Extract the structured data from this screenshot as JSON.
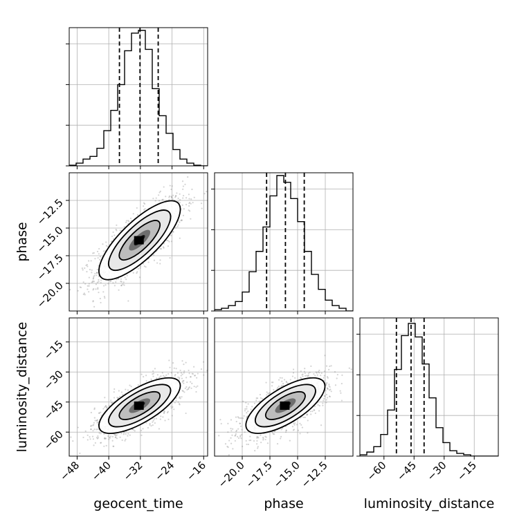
{
  "chart_data": {
    "type": "corner",
    "parameters": [
      "geocent_time",
      "phase",
      "luminosity_distance"
    ],
    "axis_labels": {
      "geocent_time": "geocent_time",
      "phase": "phase",
      "luminosity_distance": "luminosity_distance"
    },
    "ranges": {
      "geocent_time": [
        -50,
        -15
      ],
      "phase": [
        -22.5,
        -10.0
      ],
      "luminosity_distance": [
        -72,
        -3
      ]
    },
    "ticks": {
      "geocent_time": {
        "values": [
          -48,
          -40,
          -32,
          -24,
          -16
        ],
        "labels": [
          "−48",
          "−40",
          "−32",
          "−24",
          "−16"
        ]
      },
      "phase": {
        "values": [
          -20.0,
          -17.5,
          -15.0,
          -12.5
        ],
        "labels": [
          "−20.0",
          "−17.5",
          "−15.0",
          "−12.5"
        ]
      },
      "luminosity_distance": {
        "values": [
          -60,
          -45,
          -30,
          -15
        ],
        "labels": [
          "−60",
          "−45",
          "−30",
          "−15"
        ]
      }
    },
    "quantiles": {
      "geocent_time": [
        -37.3,
        -32.1,
        -27.5
      ],
      "phase": [
        -17.8,
        -16.1,
        -14.4
      ],
      "luminosity_distance": [
        -53.8,
        -46.5,
        -40.0
      ]
    },
    "histograms": {
      "geocent_time": [
        0.005,
        0.02,
        0.05,
        0.07,
        0.13,
        0.26,
        0.41,
        0.6,
        0.85,
        0.98,
        1.0,
        0.86,
        0.57,
        0.37,
        0.24,
        0.12,
        0.05,
        0.02,
        0.005,
        0.0
      ],
      "phase": [
        0.01,
        0.02,
        0.04,
        0.07,
        0.14,
        0.29,
        0.44,
        0.62,
        0.85,
        1.0,
        0.95,
        0.83,
        0.66,
        0.44,
        0.27,
        0.16,
        0.08,
        0.04,
        0.02,
        0.0
      ],
      "luminosity_distance": [
        0.01,
        0.03,
        0.07,
        0.16,
        0.34,
        0.64,
        0.89,
        0.98,
        0.88,
        0.68,
        0.43,
        0.21,
        0.1,
        0.04,
        0.02,
        0.01,
        0.0,
        0.0,
        0.0,
        0.0
      ]
    },
    "correlations": {
      "geocent_time|phase": 0.78,
      "geocent_time|luminosity_distance": 0.72,
      "phase|luminosity_distance": 0.7
    },
    "means": {
      "geocent_time": -32.2,
      "phase": -16.1,
      "luminosity_distance": -46.8
    },
    "sigmas": {
      "geocent_time": 4.9,
      "phase": 1.7,
      "luminosity_distance": 6.6
    },
    "grid": true
  }
}
